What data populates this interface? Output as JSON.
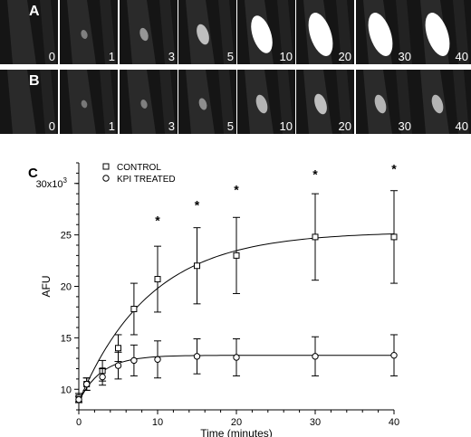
{
  "panel_labels": {
    "a": "A",
    "b": "B",
    "c": "C"
  },
  "row_a": {
    "times": [
      "0",
      "1",
      "3",
      "5",
      "10",
      "20",
      "30",
      "40"
    ],
    "signal": [
      0.0,
      0.05,
      0.15,
      0.35,
      0.8,
      0.95,
      0.95,
      0.95
    ]
  },
  "row_b": {
    "times": [
      "0",
      "1",
      "3",
      "5",
      "10",
      "20",
      "30",
      "40"
    ],
    "signal": [
      0.0,
      0.02,
      0.05,
      0.12,
      0.3,
      0.35,
      0.3,
      0.3
    ]
  },
  "colors": {
    "background": "#ffffff",
    "ink": "#000000",
    "fluorescence": "#ffffff",
    "tissue": "#2a2a2a"
  },
  "chart_data": {
    "type": "scatter",
    "xlabel": "Time (minutes)",
    "ylabel": "AFU",
    "y_exponent_label": "30x10",
    "y_exponent_sup": "3",
    "xlim": [
      0,
      40
    ],
    "ylim": [
      8,
      32
    ],
    "xticks": [
      0,
      10,
      20,
      30,
      40
    ],
    "yticks": [
      10,
      15,
      20,
      25
    ],
    "minor_x_step": 2,
    "minor_y_step": 1,
    "legend": {
      "position": "top-left",
      "entries": [
        "CONTROL",
        "KPI TREATED"
      ]
    },
    "series": [
      {
        "name": "CONTROL",
        "marker": "square",
        "x": [
          0,
          1,
          3,
          5,
          7,
          10,
          15,
          20,
          30,
          40
        ],
        "y": [
          9.2,
          10.5,
          11.8,
          14.0,
          17.8,
          20.7,
          22.0,
          23.0,
          24.8,
          24.8
        ],
        "err": [
          0.4,
          0.6,
          1.0,
          1.3,
          2.5,
          3.2,
          3.7,
          3.7,
          4.2,
          4.5
        ],
        "fit": {
          "y0": 8.8,
          "plateau": 25.3,
          "rate": 0.11
        }
      },
      {
        "name": "KPI TREATED",
        "marker": "circle",
        "x": [
          0,
          1,
          3,
          5,
          7,
          10,
          15,
          20,
          30,
          40
        ],
        "y": [
          9.0,
          10.5,
          11.2,
          12.3,
          12.8,
          12.9,
          13.2,
          13.1,
          13.2,
          13.3
        ],
        "err": [
          0.3,
          0.6,
          0.8,
          1.3,
          1.5,
          1.8,
          1.7,
          1.8,
          1.9,
          2.0
        ],
        "fit": {
          "y0": 8.8,
          "plateau": 13.3,
          "rate": 0.35
        }
      }
    ],
    "annotations": [
      {
        "x": 10,
        "y": 26.5,
        "text": "*"
      },
      {
        "x": 15,
        "y": 28.0,
        "text": "*"
      },
      {
        "x": 20,
        "y": 29.5,
        "text": "*"
      },
      {
        "x": 30,
        "y": 31.0,
        "text": "*"
      },
      {
        "x": 40,
        "y": 31.5,
        "text": "*"
      }
    ]
  }
}
